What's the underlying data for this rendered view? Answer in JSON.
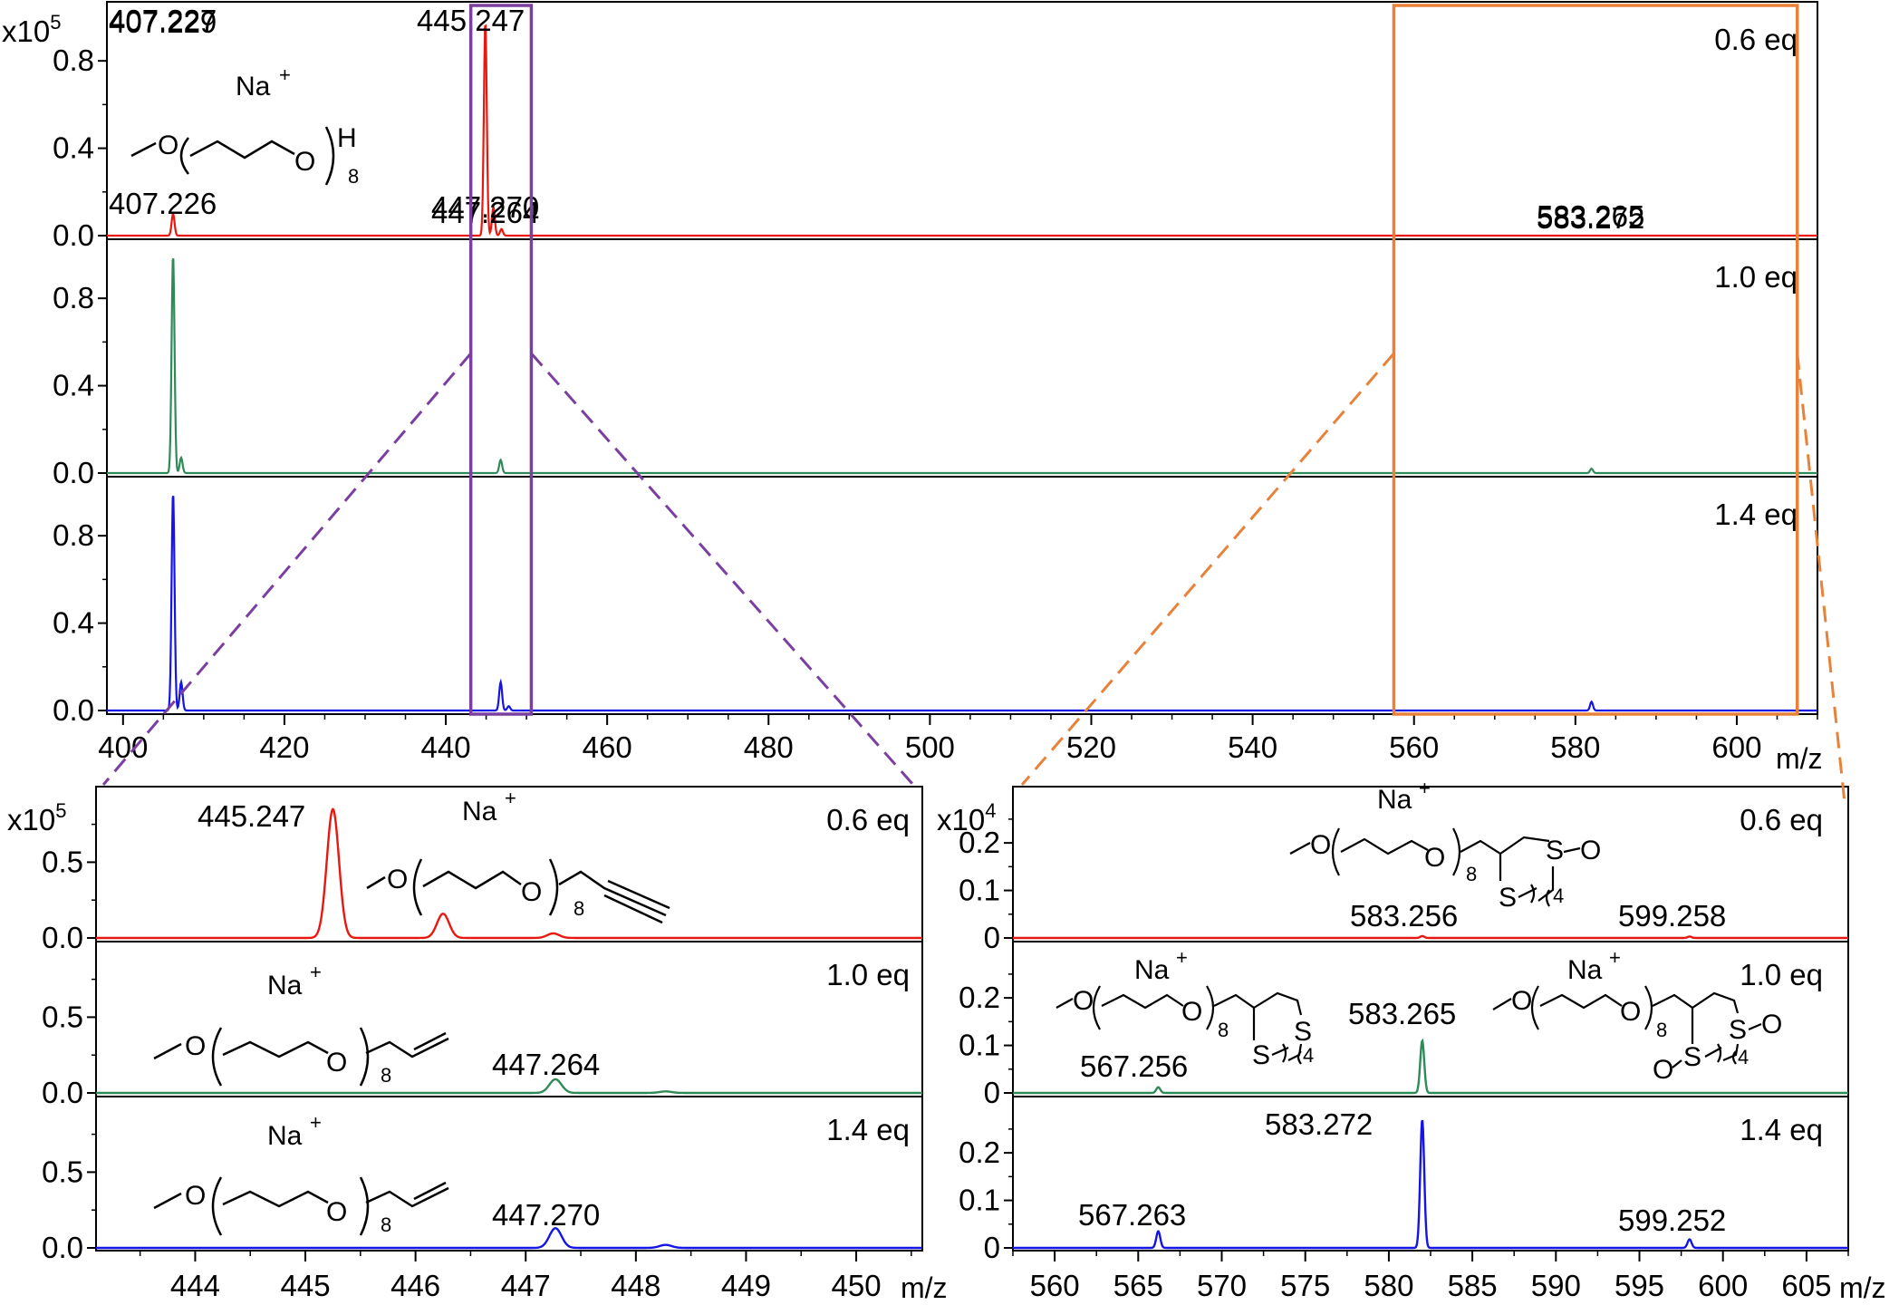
{
  "colors": {
    "red": "#e8180f",
    "green": "#2e8b57",
    "blue": "#1414e6",
    "purple_box": "#7b3fa0",
    "orange_box": "#e8823a",
    "axis": "#000000"
  },
  "top_panel": {
    "scale_label": "x10",
    "scale_exponent": "5",
    "x_unit": "m/z",
    "x_ticks": [
      "400",
      "420",
      "440",
      "460",
      "480",
      "500",
      "520",
      "540",
      "560",
      "580",
      "600"
    ],
    "y_ticks": [
      "0.0",
      "0.4",
      "0.8"
    ],
    "molecule": {
      "ion": "Na",
      "charge": "+",
      "repeat": "8",
      "end": "H",
      "o1": "O",
      "o2": "O"
    }
  },
  "bottom_left_panel": {
    "scale_label": "x10",
    "scale_exponent": "5",
    "x_unit": "m/z",
    "x_ticks": [
      "444",
      "445",
      "446",
      "447",
      "448",
      "449",
      "450"
    ],
    "y_ticks": [
      "0.0",
      "0.5"
    ],
    "molecules": [
      {
        "ion": "Na",
        "charge": "+",
        "repeat": "8",
        "o1": "O",
        "o2": "O"
      },
      {
        "ion": "Na",
        "charge": "+",
        "repeat": "8",
        "o1": "O",
        "o2": "O"
      },
      {
        "ion": "Na",
        "charge": "+",
        "repeat": "8",
        "o1": "O",
        "o2": "O"
      }
    ]
  },
  "bottom_right_panel": {
    "scale_label": "x10",
    "scale_exponent": "4",
    "x_unit": "m/z",
    "x_ticks": [
      "560",
      "565",
      "570",
      "575",
      "580",
      "585",
      "590",
      "595",
      "600",
      "605"
    ],
    "y_ticks": [
      "0",
      "0.1",
      "0.2"
    ],
    "molecules": [
      {
        "ion": "Na",
        "charge": "+",
        "repeat": "8",
        "ring_n": "4",
        "o1": "O",
        "o2": "O",
        "s1": "S",
        "s2": "S",
        "oxo": "O"
      },
      {
        "ion": "Na",
        "charge": "+",
        "repeat": "8",
        "ring_n": "4",
        "o1": "O",
        "o2": "O",
        "s1": "S",
        "s2": "S"
      },
      {
        "ion": "Na",
        "charge": "+",
        "repeat": "8",
        "ring_n": "4",
        "o1": "O",
        "o2": "O",
        "s1": "S",
        "s2": "S",
        "oxo1": "O",
        "oxo2": "O"
      }
    ]
  },
  "chart_data": [
    {
      "type": "line",
      "panel": "top",
      "xlabel": "m/z",
      "ylabel": "",
      "y_scale": "x10^5",
      "xlim": [
        398,
        610
      ],
      "ylim": [
        0,
        1.0
      ],
      "series": [
        {
          "name": "0.6 eq",
          "color": "#e8180f",
          "peaks": [
            [
              406.2,
              0.1
            ],
            [
              444.9,
              0.98
            ],
            [
              445.9,
              0.13
            ],
            [
              446.9,
              0.03
            ]
          ],
          "annotations": [
            {
              "text": "407.226",
              "x": 407.226
            },
            {
              "text": "445.247",
              "x": 445.247
            }
          ]
        },
        {
          "name": "1.0 eq",
          "color": "#2e8b57",
          "peaks": [
            [
              406.2,
              1.0
            ],
            [
              407.2,
              0.07
            ],
            [
              446.8,
              0.06
            ],
            [
              582.0,
              0.02
            ]
          ],
          "annotations": [
            {
              "text": "407.227",
              "x": 407.227
            },
            {
              "text": "447.264",
              "x": 447.264
            },
            {
              "text": "583.265",
              "x": 583.265
            }
          ]
        },
        {
          "name": "1.4 eq",
          "color": "#1414e6",
          "peaks": [
            [
              406.2,
              1.0
            ],
            [
              407.2,
              0.13
            ],
            [
              446.8,
              0.13
            ],
            [
              447.8,
              0.02
            ],
            [
              582.0,
              0.04
            ]
          ],
          "annotations": [
            {
              "text": "407.229",
              "x": 407.229
            },
            {
              "text": "447.270",
              "x": 447.27
            },
            {
              "text": "583.272",
              "x": 583.272
            }
          ]
        }
      ]
    },
    {
      "type": "line",
      "panel": "bottom-left",
      "xlabel": "m/z",
      "ylabel": "",
      "y_scale": "x10^5",
      "xlim": [
        443.1,
        450.6
      ],
      "ylim": [
        0,
        0.9
      ],
      "series": [
        {
          "name": "0.6 eq",
          "color": "#e8180f",
          "peaks": [
            [
              445.25,
              0.85
            ],
            [
              446.25,
              0.16
            ],
            [
              447.25,
              0.03
            ]
          ],
          "annotations": [
            {
              "text": "445.247",
              "x": 445.247
            }
          ]
        },
        {
          "name": "1.0 eq",
          "color": "#2e8b57",
          "peaks": [
            [
              447.27,
              0.09
            ],
            [
              448.27,
              0.01
            ]
          ],
          "annotations": [
            {
              "text": "447.264",
              "x": 447.264
            }
          ]
        },
        {
          "name": "1.4 eq",
          "color": "#1414e6",
          "peaks": [
            [
              447.27,
              0.13
            ],
            [
              448.27,
              0.02
            ]
          ],
          "annotations": [
            {
              "text": "447.270",
              "x": 447.27
            }
          ]
        }
      ]
    },
    {
      "type": "line",
      "panel": "bottom-right",
      "xlabel": "m/z",
      "ylabel": "",
      "y_scale": "x10^4",
      "xlim": [
        557.5,
        607.5
      ],
      "ylim": [
        0,
        0.3
      ],
      "series": [
        {
          "name": "0.6 eq",
          "color": "#e8180f",
          "peaks": [
            [
              582.0,
              0.004
            ],
            [
              598.0,
              0.003
            ]
          ],
          "annotations": [
            {
              "text": "583.256",
              "x": 583.256
            },
            {
              "text": "599.258",
              "x": 599.258
            }
          ]
        },
        {
          "name": "1.0 eq",
          "color": "#2e8b57",
          "peaks": [
            [
              566.2,
              0.012
            ],
            [
              582.0,
              0.11
            ]
          ],
          "annotations": [
            {
              "text": "567.256",
              "x": 567.256
            },
            {
              "text": "583.265",
              "x": 583.265
            }
          ]
        },
        {
          "name": "1.4 eq",
          "color": "#1414e6",
          "peaks": [
            [
              566.2,
              0.035
            ],
            [
              582.0,
              0.27
            ],
            [
              598.0,
              0.018
            ]
          ],
          "annotations": [
            {
              "text": "567.263",
              "x": 567.263
            },
            {
              "text": "583.272",
              "x": 583.272
            },
            {
              "text": "599.252",
              "x": 599.252
            }
          ]
        }
      ]
    }
  ]
}
